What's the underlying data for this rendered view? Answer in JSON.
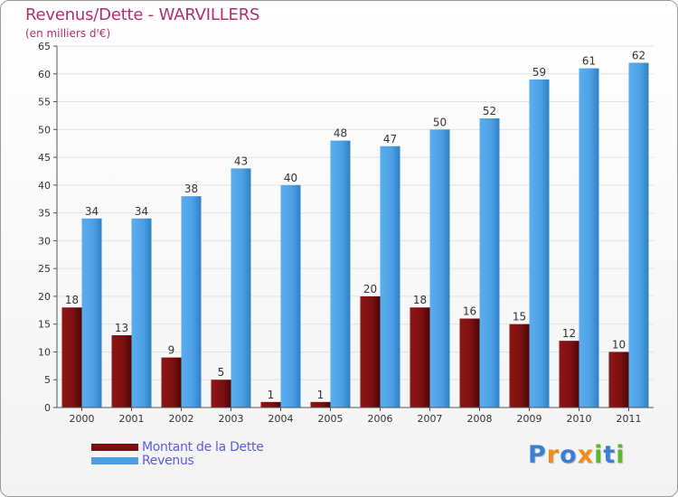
{
  "chart_data": {
    "type": "bar",
    "title": "Revenus/Dette - WARVILLERS",
    "subtitle": "(en milliers d'€)",
    "categories": [
      "2000",
      "2001",
      "2002",
      "2003",
      "2004",
      "2005",
      "2006",
      "2007",
      "2008",
      "2009",
      "2010",
      "2011"
    ],
    "series": [
      {
        "name": "Montant de la Dette",
        "color": "#7a1010",
        "values": [
          18,
          13,
          9,
          5,
          1,
          1,
          20,
          18,
          16,
          15,
          12,
          10
        ]
      },
      {
        "name": "Revenus",
        "color": "#4c9fe3",
        "values": [
          34,
          34,
          38,
          43,
          40,
          48,
          47,
          50,
          52,
          59,
          61,
          62
        ]
      }
    ],
    "ylim": [
      0,
      65
    ],
    "yticks": [
      0,
      5,
      10,
      15,
      20,
      25,
      30,
      35,
      40,
      45,
      50,
      55,
      60,
      65
    ],
    "grid": true,
    "legend": "bottom-left"
  },
  "logo": {
    "text": "Proxiti",
    "letters": [
      {
        "ch": "P",
        "color": "#3a7fd6"
      },
      {
        "ch": "r",
        "color": "#f08c1a"
      },
      {
        "ch": "o",
        "color": "#3a7fd6"
      },
      {
        "ch": "x",
        "color": "#f08c1a"
      },
      {
        "ch": "i",
        "color": "#5bb82f"
      },
      {
        "ch": "t",
        "color": "#3a7fd6"
      },
      {
        "ch": "i",
        "color": "#5bb82f"
      }
    ]
  }
}
